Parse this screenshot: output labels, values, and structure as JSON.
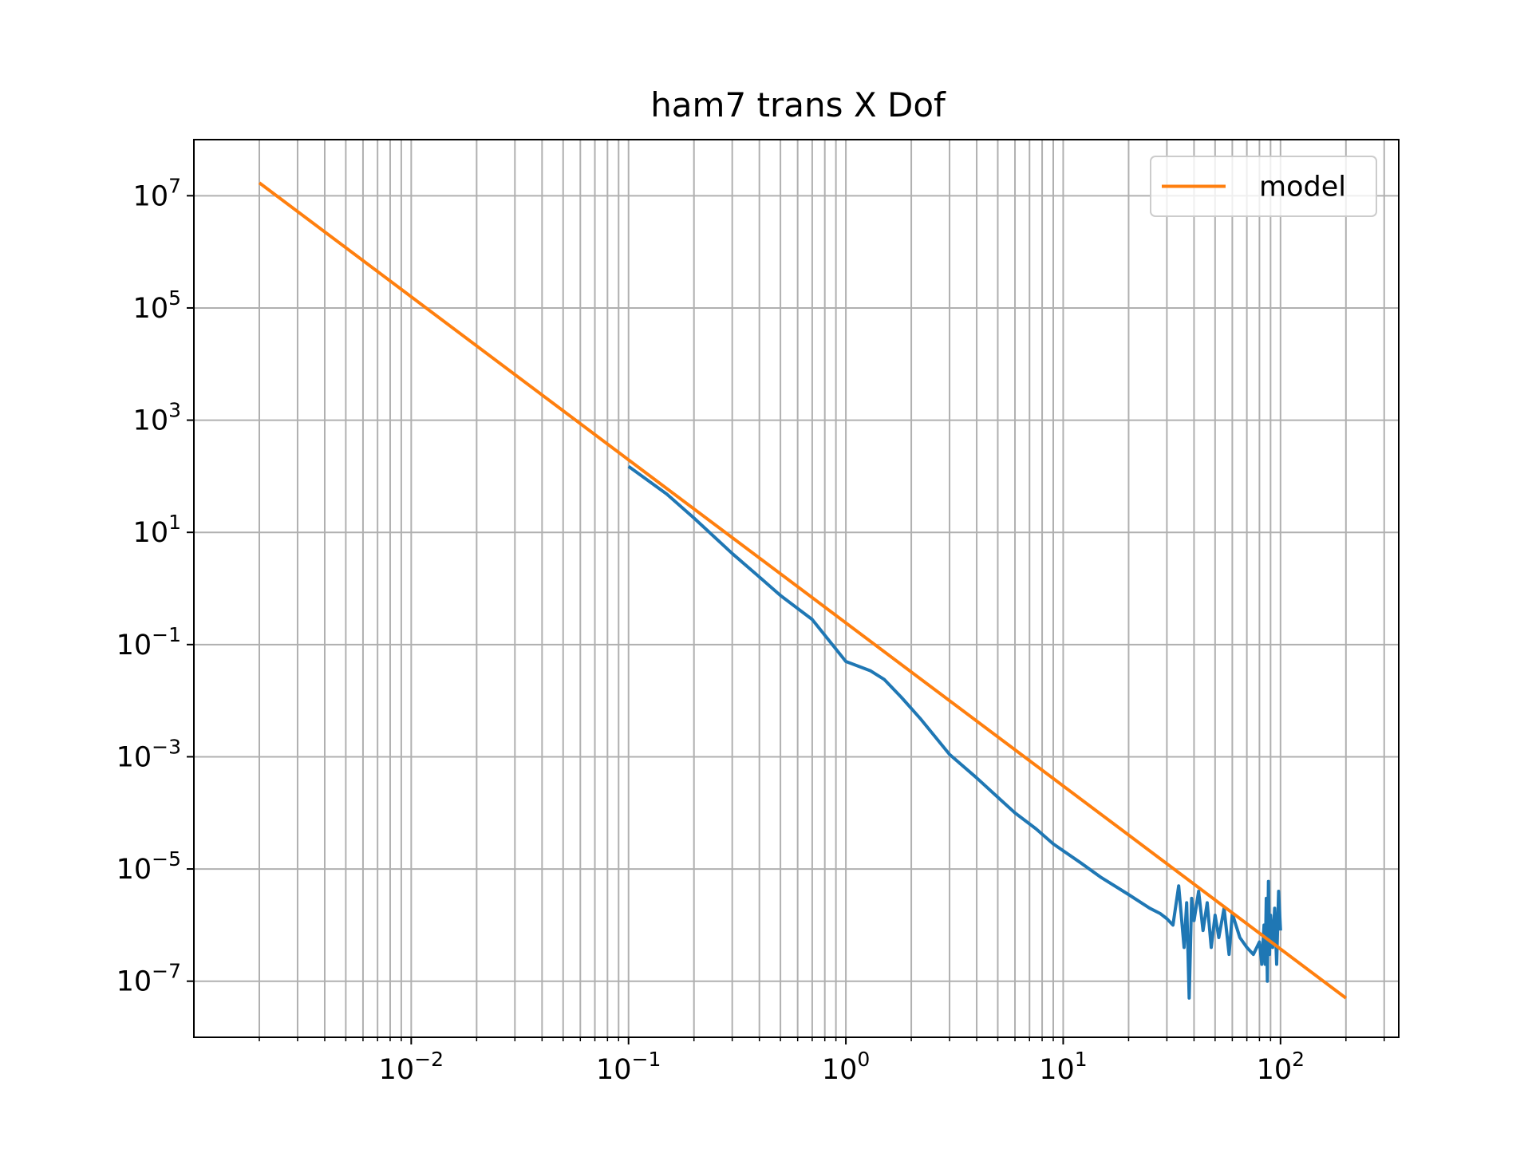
{
  "chart_data": {
    "type": "line",
    "title": "ham7 trans X Dof",
    "xlabel": "",
    "ylabel": "",
    "xscale": "log",
    "yscale": "log",
    "xlim": [
      0.001,
      350
    ],
    "ylim": [
      1e-08,
      100000000.0
    ],
    "grid": "major and minor",
    "legend": {
      "position": "upper right",
      "entries": [
        "model"
      ]
    },
    "x_ticks": [
      {
        "value": 0.01,
        "base": "10",
        "exp": "−2"
      },
      {
        "value": 0.1,
        "base": "10",
        "exp": "−1"
      },
      {
        "value": 1,
        "base": "10",
        "exp": "0"
      },
      {
        "value": 10,
        "base": "10",
        "exp": "1"
      },
      {
        "value": 100,
        "base": "10",
        "exp": "2"
      }
    ],
    "y_ticks": [
      {
        "value": 10000000.0,
        "base": "10",
        "exp": "7"
      },
      {
        "value": 100000.0,
        "base": "10",
        "exp": "5"
      },
      {
        "value": 1000.0,
        "base": "10",
        "exp": "3"
      },
      {
        "value": 10,
        "base": "10",
        "exp": "1"
      },
      {
        "value": 0.1,
        "base": "10",
        "exp": "−1"
      },
      {
        "value": 0.001,
        "base": "10",
        "exp": "−3"
      },
      {
        "value": 1e-05,
        "base": "10",
        "exp": "−5"
      },
      {
        "value": 1e-07,
        "base": "10",
        "exp": "−7"
      }
    ],
    "series": [
      {
        "name": "",
        "color": "#1f77b4",
        "x": [
          0.1,
          0.15,
          0.2,
          0.3,
          0.4,
          0.5,
          0.7,
          1.0,
          1.3,
          1.5,
          1.8,
          2.2,
          3.0,
          4.0,
          5.0,
          6.0,
          7.5,
          9.0,
          12,
          15,
          20,
          25,
          28,
          30,
          32,
          34,
          36,
          37,
          38,
          39,
          40,
          42,
          44,
          46,
          48,
          50,
          52,
          55,
          58,
          60,
          65,
          70,
          75,
          80,
          82,
          84,
          85,
          86,
          87,
          88,
          89,
          90,
          92,
          94,
          96,
          98,
          100
        ],
        "y": [
          150,
          48,
          18,
          4.2,
          1.6,
          0.75,
          0.28,
          0.05,
          0.034,
          0.024,
          0.0115,
          0.0048,
          0.0011,
          0.00042,
          0.00019,
          0.0001,
          5.2e-05,
          2.8e-05,
          1.3e-05,
          7e-06,
          3.5e-06,
          2e-06,
          1.6e-06,
          1.3e-06,
          1e-06,
          5e-06,
          4e-07,
          2.5e-06,
          5e-08,
          3e-06,
          1.2e-06,
          4e-06,
          8e-07,
          2.5e-06,
          4e-07,
          1.5e-06,
          6e-07,
          2e-06,
          3e-07,
          1.6e-06,
          6e-07,
          4e-07,
          3e-07,
          5e-07,
          2e-07,
          1e-06,
          2e-07,
          3e-06,
          1e-07,
          6e-06,
          3e-07,
          1.5e-06,
          4e-07,
          2e-06,
          2e-07,
          4e-06,
          8e-07
        ]
      },
      {
        "name": "model",
        "color": "#ff7f0e",
        "x": [
          0.002,
          200
        ],
        "y": [
          17000000.0,
          5e-08
        ]
      }
    ]
  }
}
